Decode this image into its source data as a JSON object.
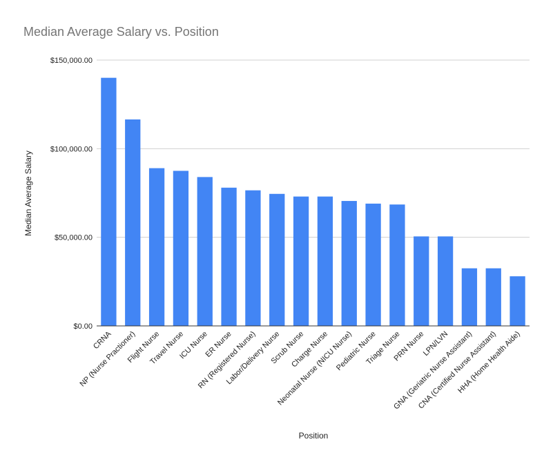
{
  "chart_data": {
    "type": "bar",
    "title": "Median Average Salary vs. Position",
    "xlabel": "Position",
    "ylabel": "Median Average Salary",
    "ylim": [
      0,
      150000
    ],
    "yticks": [
      0,
      50000,
      100000,
      150000
    ],
    "ytick_labels": [
      "$0.00",
      "$50,000.00",
      "$100,000.00",
      "$150,000.00"
    ],
    "grid": true,
    "legend": "none",
    "bar_color": "#4285f4",
    "categories": [
      "CRNA",
      "NP (Nurse Practioner)",
      "Flight Nurse",
      "Travel Nurse",
      "ICU Nurse",
      "ER Nurse",
      "RN (Registered Nurse)",
      "Labor/Delivery Nurse",
      "Scrub Nurse",
      "Charge Nurse",
      "Neonatal Nurse (NICU Nurse)",
      "Pediatric Nurse",
      "Triage Nurse",
      "PRN Nurse",
      "LPN/LVN",
      "GNA (Geriatric Nurse Assistant)",
      "CNA (Certified Nurse Assistant)",
      "HHA (Home Health Aide)"
    ],
    "values": [
      140000,
      116500,
      89000,
      87500,
      84000,
      78000,
      76500,
      74500,
      73000,
      73000,
      70500,
      69000,
      68500,
      50500,
      50500,
      32500,
      32500,
      28000
    ]
  }
}
